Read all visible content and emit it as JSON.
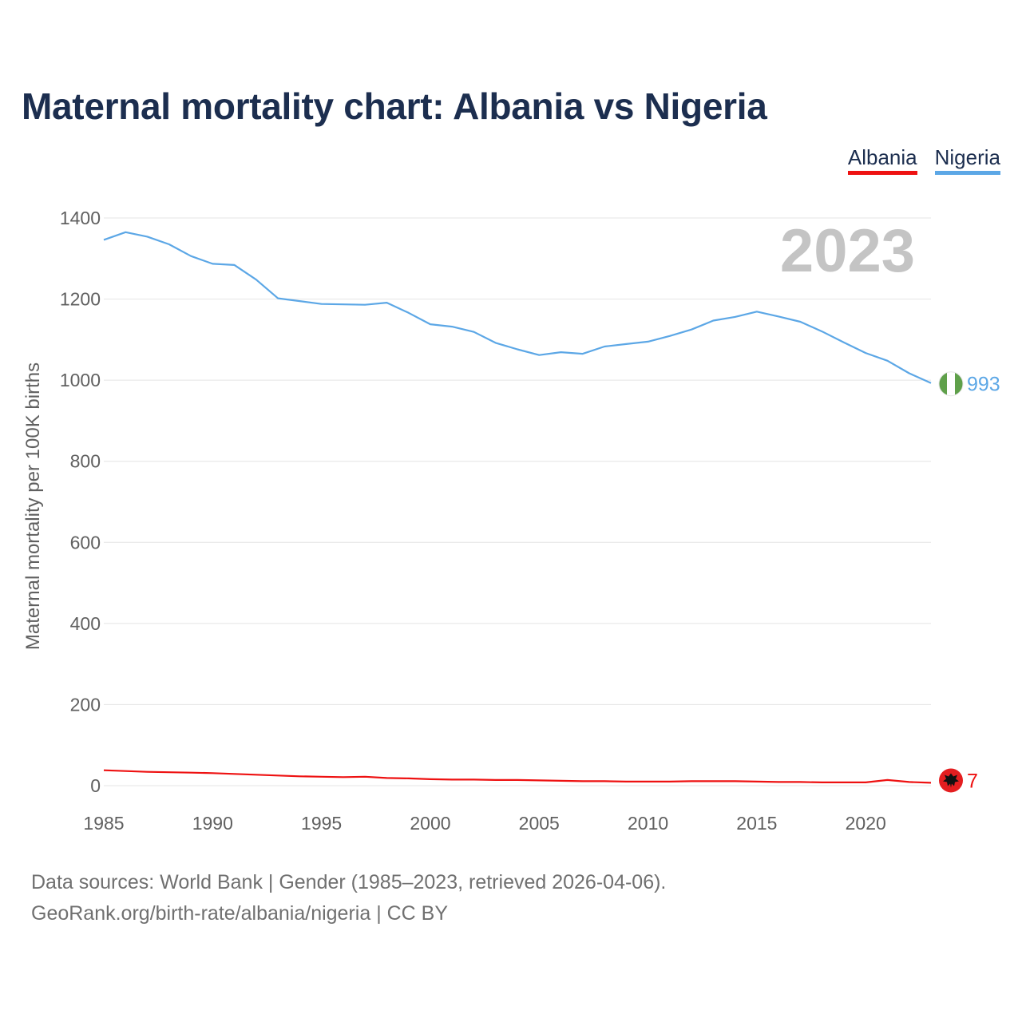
{
  "title": "Maternal mortality chart: Albania vs Nigeria",
  "legend": [
    {
      "label": "Albania",
      "color": "#ee1111"
    },
    {
      "label": "Nigeria",
      "color": "#5ca7e6"
    }
  ],
  "year_overlay": "2023",
  "footer": {
    "line1": "Data sources: World Bank | Gender (1985–2023, retrieved 2026-04-06).",
    "line2": "GeoRank.org/birth-rate/albania/nigeria | CC BY"
  },
  "chart_data": {
    "type": "line",
    "title": "Maternal mortality chart: Albania vs Nigeria",
    "xlabel": "",
    "ylabel": "Maternal mortality per 100K births",
    "xlim": [
      1985,
      2023
    ],
    "ylim": [
      0,
      1400
    ],
    "xticks": [
      1985,
      1990,
      1995,
      2000,
      2005,
      2010,
      2015,
      2020
    ],
    "yticks": [
      0,
      200,
      400,
      600,
      800,
      1000,
      1200,
      1400
    ],
    "grid": true,
    "legend_position": "top-right",
    "x": [
      1985,
      1986,
      1987,
      1988,
      1989,
      1990,
      1991,
      1992,
      1993,
      1994,
      1995,
      1996,
      1997,
      1998,
      1999,
      2000,
      2001,
      2002,
      2003,
      2004,
      2005,
      2006,
      2007,
      2008,
      2009,
      2010,
      2011,
      2012,
      2013,
      2014,
      2015,
      2016,
      2017,
      2018,
      2019,
      2020,
      2021,
      2022,
      2023
    ],
    "series": [
      {
        "name": "Nigeria",
        "color": "#5ca7e6",
        "end_label": "993",
        "values": [
          1346,
          1365,
          1354,
          1335,
          1306,
          1287,
          1284,
          1248,
          1202,
          1195,
          1188,
          1187,
          1186,
          1191,
          1166,
          1138,
          1132,
          1119,
          1092,
          1076,
          1062,
          1069,
          1065,
          1083,
          1089,
          1095,
          1109,
          1125,
          1147,
          1156,
          1169,
          1157,
          1144,
          1120,
          1093,
          1067,
          1048,
          1017,
          993
        ]
      },
      {
        "name": "Albania",
        "color": "#ee1111",
        "end_label": "7",
        "values": [
          38,
          36,
          34,
          33,
          32,
          31,
          29,
          27,
          25,
          23,
          22,
          21,
          22,
          19,
          18,
          16,
          15,
          15,
          14,
          14,
          13,
          12,
          11,
          11,
          10,
          10,
          10,
          11,
          11,
          11,
          10,
          9,
          9,
          8,
          8,
          8,
          14,
          9,
          7
        ]
      }
    ]
  }
}
